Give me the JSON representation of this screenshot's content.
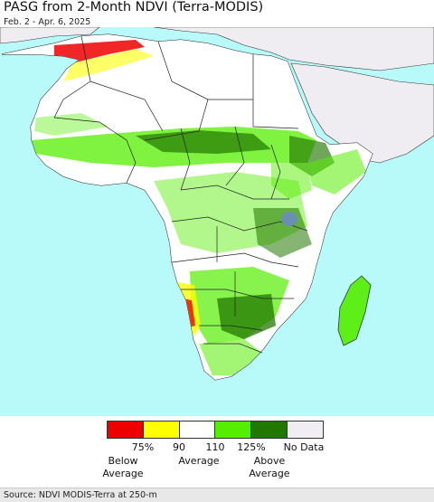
{
  "header": {
    "title": "PASG from 2-Month NDVI (Terra-MODIS)",
    "subtitle": "Feb. 2 - Apr. 6, 2025"
  },
  "legend": {
    "colors": [
      "#ee0000",
      "#ffff00",
      "#ffffff",
      "#55ee00",
      "#227700",
      "#f0eef2"
    ],
    "ticks": [
      "75%",
      "90",
      "110",
      "125%",
      "No Data"
    ],
    "categories": {
      "below_line1": "Below",
      "below_line2": "Average",
      "average": "Average",
      "above_line1": "Above",
      "above_line2": "Average"
    }
  },
  "footer": {
    "source": "Source: NDVI MODIS-Terra at 250-m"
  },
  "map_colors": {
    "ocean": "#b8fafa",
    "land": "#ffffff",
    "no_data": "#efedf1",
    "border": "#222222"
  }
}
